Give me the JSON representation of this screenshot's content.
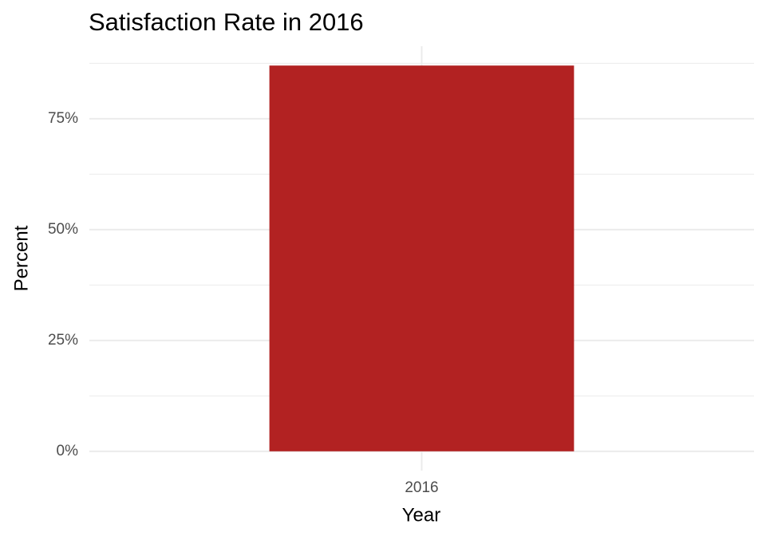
{
  "chart_data": {
    "type": "bar",
    "title": "Satisfaction Rate in 2016",
    "x_label": "Year",
    "y_label": "Percent",
    "categories": [
      "2016"
    ],
    "values": [
      87
    ],
    "color": "#b22222",
    "ylim": [
      -4.35,
      91.35
    ],
    "yticks": [
      {
        "value": 0,
        "label": "0%"
      },
      {
        "value": 25,
        "label": "25%"
      },
      {
        "value": 50,
        "label": "50%"
      },
      {
        "value": 75,
        "label": "75%"
      }
    ],
    "grid": true
  }
}
